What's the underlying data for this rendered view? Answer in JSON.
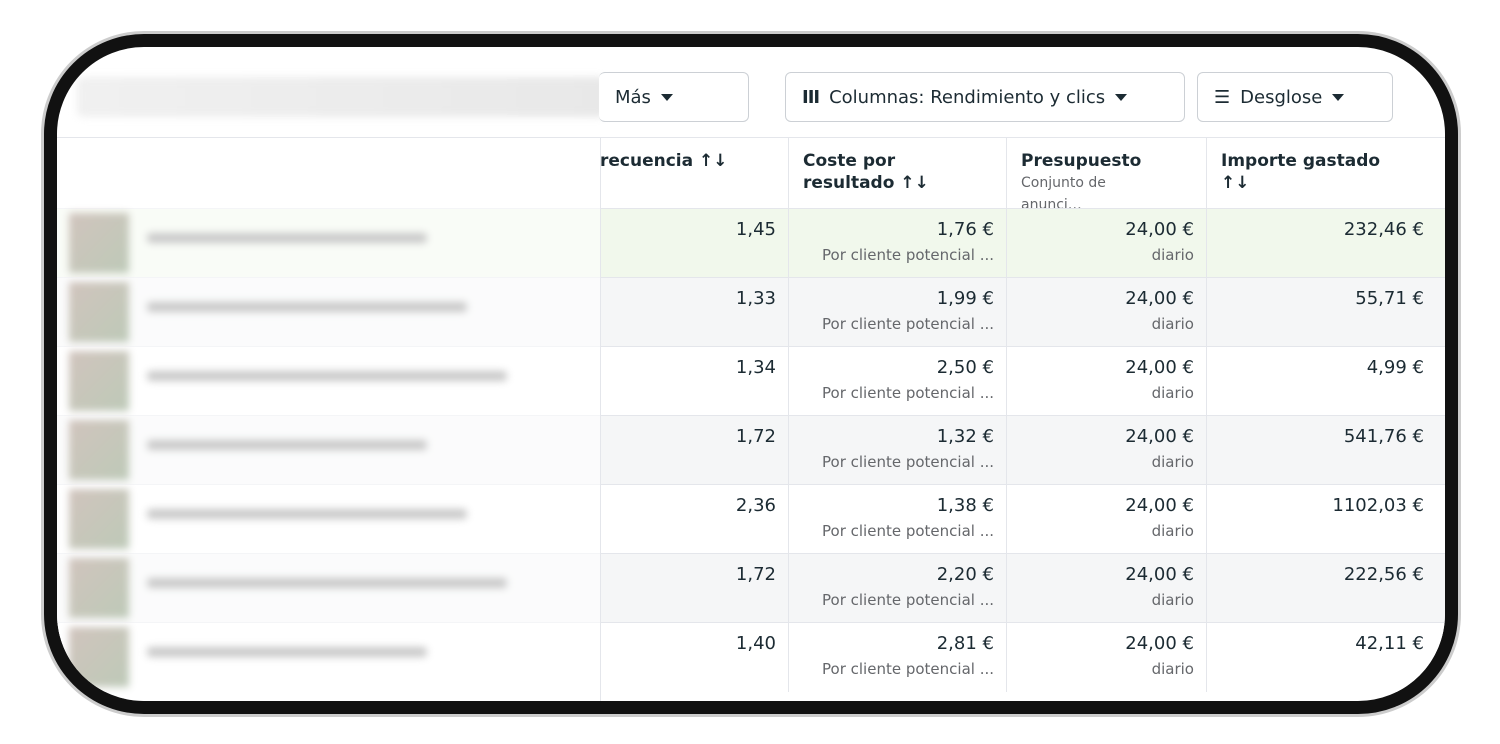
{
  "toolbar": {
    "more": "Más",
    "columns": "Columnas: Rendimiento y clics",
    "breakdown": "Desglose"
  },
  "table": {
    "headers": {
      "frequency": "recuencia ↑↓",
      "cost": "Coste por resultado ↑↓",
      "budget": "Presupuesto",
      "budget_sub": "Conjunto de anunci…",
      "spent": "Importe gastado ↑↓"
    },
    "rows": [
      {
        "frequency": "1,45",
        "cost": "1,76 €",
        "cost_note": "Por cliente potencial ...",
        "budget": "24,00 €",
        "budget_note": "diario",
        "spent": "232,46 €"
      },
      {
        "frequency": "1,33",
        "cost": "1,99 €",
        "cost_note": "Por cliente potencial ...",
        "budget": "24,00 €",
        "budget_note": "diario",
        "spent": "55,71 €"
      },
      {
        "frequency": "1,34",
        "cost": "2,50 €",
        "cost_note": "Por cliente potencial ...",
        "budget": "24,00 €",
        "budget_note": "diario",
        "spent": "4,99 €"
      },
      {
        "frequency": "1,72",
        "cost": "1,32 €",
        "cost_note": "Por cliente potencial ...",
        "budget": "24,00 €",
        "budget_note": "diario",
        "spent": "541,76 €"
      },
      {
        "frequency": "2,36",
        "cost": "1,38 €",
        "cost_note": "Por cliente potencial ...",
        "budget": "24,00 €",
        "budget_note": "diario",
        "spent": "1102,03 €"
      },
      {
        "frequency": "1,72",
        "cost": "2,20 €",
        "cost_note": "Por cliente potencial ...",
        "budget": "24,00 €",
        "budget_note": "diario",
        "spent": "222,56 €"
      },
      {
        "frequency": "1,40",
        "cost": "2,81 €",
        "cost_note": "Por cliente potencial ...",
        "budget": "24,00 €",
        "budget_note": "diario",
        "spent": "42,11 €"
      }
    ]
  }
}
